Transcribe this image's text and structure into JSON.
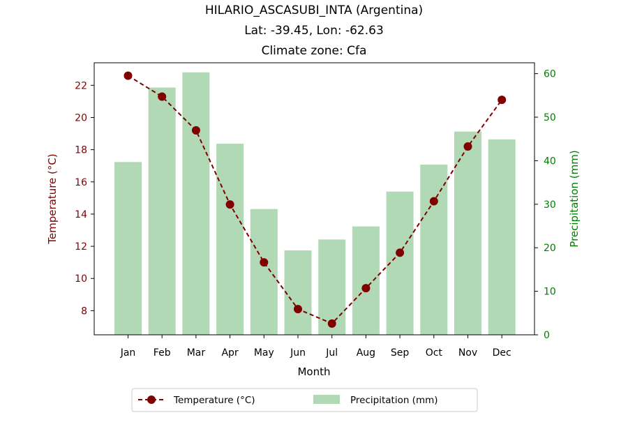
{
  "chart_data": {
    "type": "bar+line",
    "title_lines": [
      "HILARIO_ASCASUBI_INTA (Argentina)",
      "Lat: -39.45, Lon: -62.63",
      "Climate zone: Cfa"
    ],
    "xlabel": "Month",
    "ylabel_left": "Temperature (°C)",
    "ylabel_right": "Precipitation (mm)",
    "categories": [
      "Jan",
      "Feb",
      "Mar",
      "Apr",
      "May",
      "Jun",
      "Jul",
      "Aug",
      "Sep",
      "Oct",
      "Nov",
      "Dec"
    ],
    "temperature": {
      "name": "Temperature (°C)",
      "values": [
        22.6,
        21.3,
        19.2,
        14.6,
        11.0,
        8.1,
        7.2,
        9.4,
        11.6,
        14.8,
        18.2,
        21.1
      ],
      "color": "#800000",
      "ylim": [
        6.5,
        23.4
      ],
      "ticks": [
        8,
        10,
        12,
        14,
        16,
        18,
        20,
        22
      ]
    },
    "precipitation": {
      "name": "Precipitation (mm)",
      "values": [
        39.7,
        56.8,
        60.3,
        43.9,
        28.9,
        19.4,
        21.9,
        24.9,
        32.9,
        39.1,
        46.7,
        44.9
      ],
      "color": "#b2d9b5",
      "ylim": [
        0,
        62.5
      ],
      "ticks": [
        0,
        10,
        20,
        30,
        40,
        50,
        60
      ]
    },
    "right_axis_color": "#008000",
    "legend": [
      "Temperature (°C)",
      "Precipitation (mm)"
    ],
    "legend_placement": "bottom-center"
  }
}
